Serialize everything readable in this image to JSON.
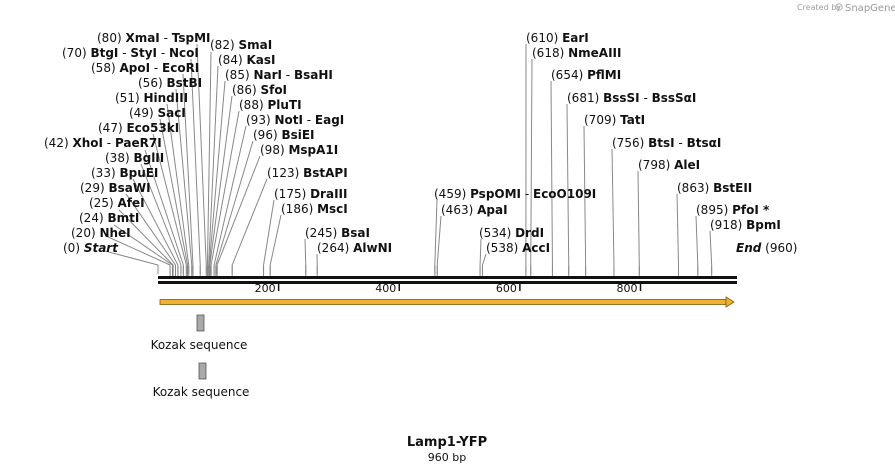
{
  "watermark": {
    "created_by": "Created by",
    "brand": "SnapGene",
    "logo_icon": "snapgene-logo-icon"
  },
  "sequence": {
    "length": 960,
    "start_label": "Start",
    "end_label": "End"
  },
  "ruler": {
    "ticks": [
      200,
      400,
      600,
      800
    ]
  },
  "sites": [
    {
      "id": "start",
      "name": "Start",
      "pos": 0,
      "italic": true
    },
    {
      "id": "NheI",
      "name": "NheI",
      "pos": 20
    },
    {
      "id": "BmtI",
      "name": "BmtI",
      "pos": 24
    },
    {
      "id": "AfeI",
      "name": "AfeI",
      "pos": 25
    },
    {
      "id": "BsaWI",
      "name": "BsaWI",
      "pos": 29
    },
    {
      "id": "BpuEI",
      "name": "BpuEI",
      "pos": 33
    },
    {
      "id": "BglII",
      "name": "BglII",
      "pos": 38
    },
    {
      "id": "XhoI",
      "name": "XhoI",
      "name2": "PaeR7I",
      "pos": 42
    },
    {
      "id": "Eco53kI",
      "name": "Eco53kI",
      "pos": 47
    },
    {
      "id": "SacI",
      "name": "SacI",
      "pos": 49
    },
    {
      "id": "HindIII",
      "name": "HindIII",
      "pos": 51
    },
    {
      "id": "BstBI",
      "name": "BstBI",
      "pos": 56
    },
    {
      "id": "ApoI",
      "name": "ApoI",
      "name2": "EcoRI",
      "pos": 58
    },
    {
      "id": "BtgI",
      "name": "BtgI",
      "name2": "StyI",
      "name3": "NcoI",
      "pos": 70
    },
    {
      "id": "XmaI",
      "name": "XmaI",
      "name2": "TspMI",
      "pos": 80
    },
    {
      "id": "SmaI",
      "name": "SmaI",
      "pos": 82
    },
    {
      "id": "KasI",
      "name": "KasI",
      "pos": 84
    },
    {
      "id": "NarI",
      "name": "NarI",
      "name2": "BsaHI",
      "pos": 85
    },
    {
      "id": "SfoI",
      "name": "SfoI",
      "pos": 86
    },
    {
      "id": "PluTI",
      "name": "PluTI",
      "pos": 88
    },
    {
      "id": "NotI",
      "name": "NotI",
      "name2": "EagI",
      "pos": 93
    },
    {
      "id": "BsiEI",
      "name": "BsiEI",
      "pos": 96
    },
    {
      "id": "MspA1I",
      "name": "MspA1I",
      "pos": 98
    },
    {
      "id": "BstAPI",
      "name": "BstAPI",
      "pos": 123
    },
    {
      "id": "DraIII",
      "name": "DraIII",
      "pos": 175
    },
    {
      "id": "MscI",
      "name": "MscI",
      "pos": 186
    },
    {
      "id": "BsaI",
      "name": "BsaI",
      "pos": 245
    },
    {
      "id": "AlwNI",
      "name": "AlwNI",
      "pos": 264
    },
    {
      "id": "PspOMI",
      "name": "PspOMI",
      "name2": "EcoO109I",
      "pos": 459
    },
    {
      "id": "ApaI",
      "name": "ApaI",
      "pos": 463
    },
    {
      "id": "DrdI",
      "name": "DrdI",
      "pos": 534
    },
    {
      "id": "AccI",
      "name": "AccI",
      "pos": 538
    },
    {
      "id": "EarI",
      "name": "EarI",
      "pos": 610
    },
    {
      "id": "NmeAIII",
      "name": "NmeAIII",
      "pos": 618
    },
    {
      "id": "PflMI",
      "name": "PflMI",
      "pos": 654
    },
    {
      "id": "BssSI",
      "name": "BssSI",
      "name2": "BssSαI",
      "pos": 681
    },
    {
      "id": "TatI",
      "name": "TatI",
      "pos": 709
    },
    {
      "id": "BtsI",
      "name": "BtsI",
      "name2": "BtsαI",
      "pos": 756
    },
    {
      "id": "AleI",
      "name": "AleI",
      "pos": 798
    },
    {
      "id": "BstEII",
      "name": "BstEII",
      "pos": 863
    },
    {
      "id": "PfoI",
      "name": "PfoI *",
      "pos": 895
    },
    {
      "id": "BpmI",
      "name": "BpmI",
      "pos": 918
    },
    {
      "id": "end",
      "name": "End",
      "pos": 960,
      "italic": true
    }
  ],
  "features": [
    {
      "name": "Kozak sequence",
      "color": "#a9a9a9"
    },
    {
      "name": "Kozak sequence",
      "color": "#a9a9a9"
    }
  ],
  "orf": {
    "color": "#f0b030",
    "stroke": "#7a5a10"
  },
  "title": {
    "name": "Lamp1-YFP",
    "size_text": "960 bp"
  }
}
